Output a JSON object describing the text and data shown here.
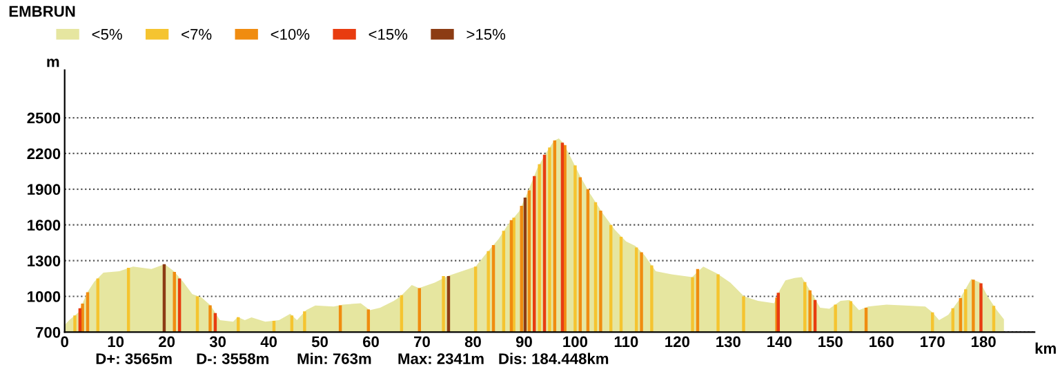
{
  "chart_data": {
    "type": "area",
    "title": "EMBRUN",
    "xlabel": "km",
    "ylabel": "m",
    "xlim": [
      0,
      190
    ],
    "ylim": [
      700,
      2900
    ],
    "xticks": [
      0,
      10,
      20,
      30,
      40,
      50,
      60,
      70,
      80,
      90,
      100,
      110,
      120,
      130,
      140,
      150,
      160,
      170,
      180
    ],
    "yticks": [
      {
        "value": 700,
        "label": "700"
      },
      1000,
      1300,
      1600,
      1900,
      2200,
      2500
    ],
    "grid": "y",
    "legend": "top left",
    "annotations": [
      "D+: 3565m",
      "D-: 3558m",
      "Min: 763m",
      "Max: 2341m",
      "Dis: 184.448km"
    ],
    "series": [
      {
        "name": "<5%",
        "color": "#e6e6a0",
        "x": [
          0,
          0.9,
          2.7,
          4.5,
          5.8,
          7.6,
          10.7,
          13.4,
          17,
          19.6,
          21.4,
          23.2,
          25,
          26.8,
          28.6,
          30.4,
          33,
          33.9,
          35.3,
          36.6,
          39.3,
          42,
          44.2,
          45.5,
          47.3,
          49.1,
          52.7,
          54.5,
          58,
          59.8,
          61.8,
          64.5,
          65.8,
          68,
          69.4,
          72.5,
          75.2,
          80.5,
          82.3,
          85,
          86.8,
          89,
          90.8,
          92.6,
          94.4,
          95.9,
          96.8,
          97.7,
          99.3,
          101.1,
          102.9,
          105.5,
          107.8,
          110,
          111.8,
          113.6,
          115.8,
          118.9,
          122.9,
          125.1,
          127.8,
          130.4,
          133.1,
          135.8,
          139,
          139.9,
          141.2,
          143,
          144.4,
          146.2,
          148,
          149.8,
          152,
          153.8,
          155.6,
          157.4,
          161,
          164.6,
          168.6,
          170,
          171.3,
          173.1,
          175.4,
          177.6,
          179.4,
          180.8,
          182.6,
          184
        ],
        "values": [
          760,
          800,
          865,
          1038,
          1123,
          1200,
          1211,
          1250,
          1230,
          1270,
          1211,
          1123,
          1019,
          992,
          923,
          800,
          788,
          827,
          800,
          823,
          788,
          800,
          854,
          800,
          885,
          923,
          915,
          931,
          942,
          885,
          904,
          962,
          1000,
          1096,
          1069,
          1115,
          1173,
          1250,
          1346,
          1481,
          1600,
          1712,
          1885,
          2077,
          2211,
          2308,
          2327,
          2288,
          2154,
          2000,
          1865,
          1692,
          1558,
          1461,
          1423,
          1346,
          1211,
          1185,
          1162,
          1250,
          1192,
          1115,
          1000,
          962,
          942,
          1038,
          1135,
          1154,
          1162,
          1038,
          904,
          896,
          962,
          969,
          885,
          915,
          931,
          923,
          915,
          865,
          800,
          846,
          981,
          1146,
          1115,
          1000,
          885,
          808
        ]
      },
      {
        "name": "<7%",
        "color": "#f5c430",
        "type": "bar",
        "x": [
          2,
          6.5,
          12.5,
          26,
          34,
          41,
          44.5,
          47,
          66,
          74.2,
          80.5,
          83,
          86,
          88,
          93,
          95,
          100,
          104,
          107,
          109,
          112,
          115,
          123,
          128,
          133,
          145,
          151,
          154,
          170,
          174,
          176.5,
          182
        ],
        "values": [
          840,
          1150,
          1240,
          1000,
          825,
          795,
          840,
          875,
          1010,
          1170,
          1250,
          1380,
          1550,
          1660,
          2110,
          2250,
          2100,
          1790,
          1600,
          1500,
          1410,
          1260,
          1160,
          1185,
          1000,
          1120,
          930,
          960,
          865,
          900,
          1060,
          920
        ]
      },
      {
        "name": "<10%",
        "color": "#f08c10",
        "type": "bar",
        "x": [
          3.5,
          4.5,
          21.5,
          28.5,
          54,
          59.5,
          69.5,
          84,
          87.5,
          89.5,
          91,
          96,
          98,
          101,
          102.5,
          105,
          113,
          124,
          139.5,
          146,
          157,
          175.5,
          178
        ],
        "values": [
          940,
          1035,
          1205,
          925,
          925,
          890,
          1070,
          1430,
          1640,
          1760,
          1890,
          2310,
          2270,
          2000,
          1900,
          1720,
          1370,
          1230,
          990,
          1050,
          905,
          985,
          1140
        ]
      },
      {
        "name": "<15%",
        "color": "#e83c10",
        "type": "bar",
        "x": [
          3,
          22.5,
          29.5,
          92,
          94,
          97.5,
          139.8,
          147,
          179.5
        ],
        "values": [
          900,
          1150,
          860,
          2010,
          2190,
          2290,
          1030,
          970,
          1110
        ]
      },
      {
        "name": ">15%",
        "color": "#8c3c14",
        "type": "bar",
        "x": [
          19.5,
          75.2,
          90.2
        ],
        "values": [
          1270,
          1170,
          1830
        ]
      }
    ]
  }
}
